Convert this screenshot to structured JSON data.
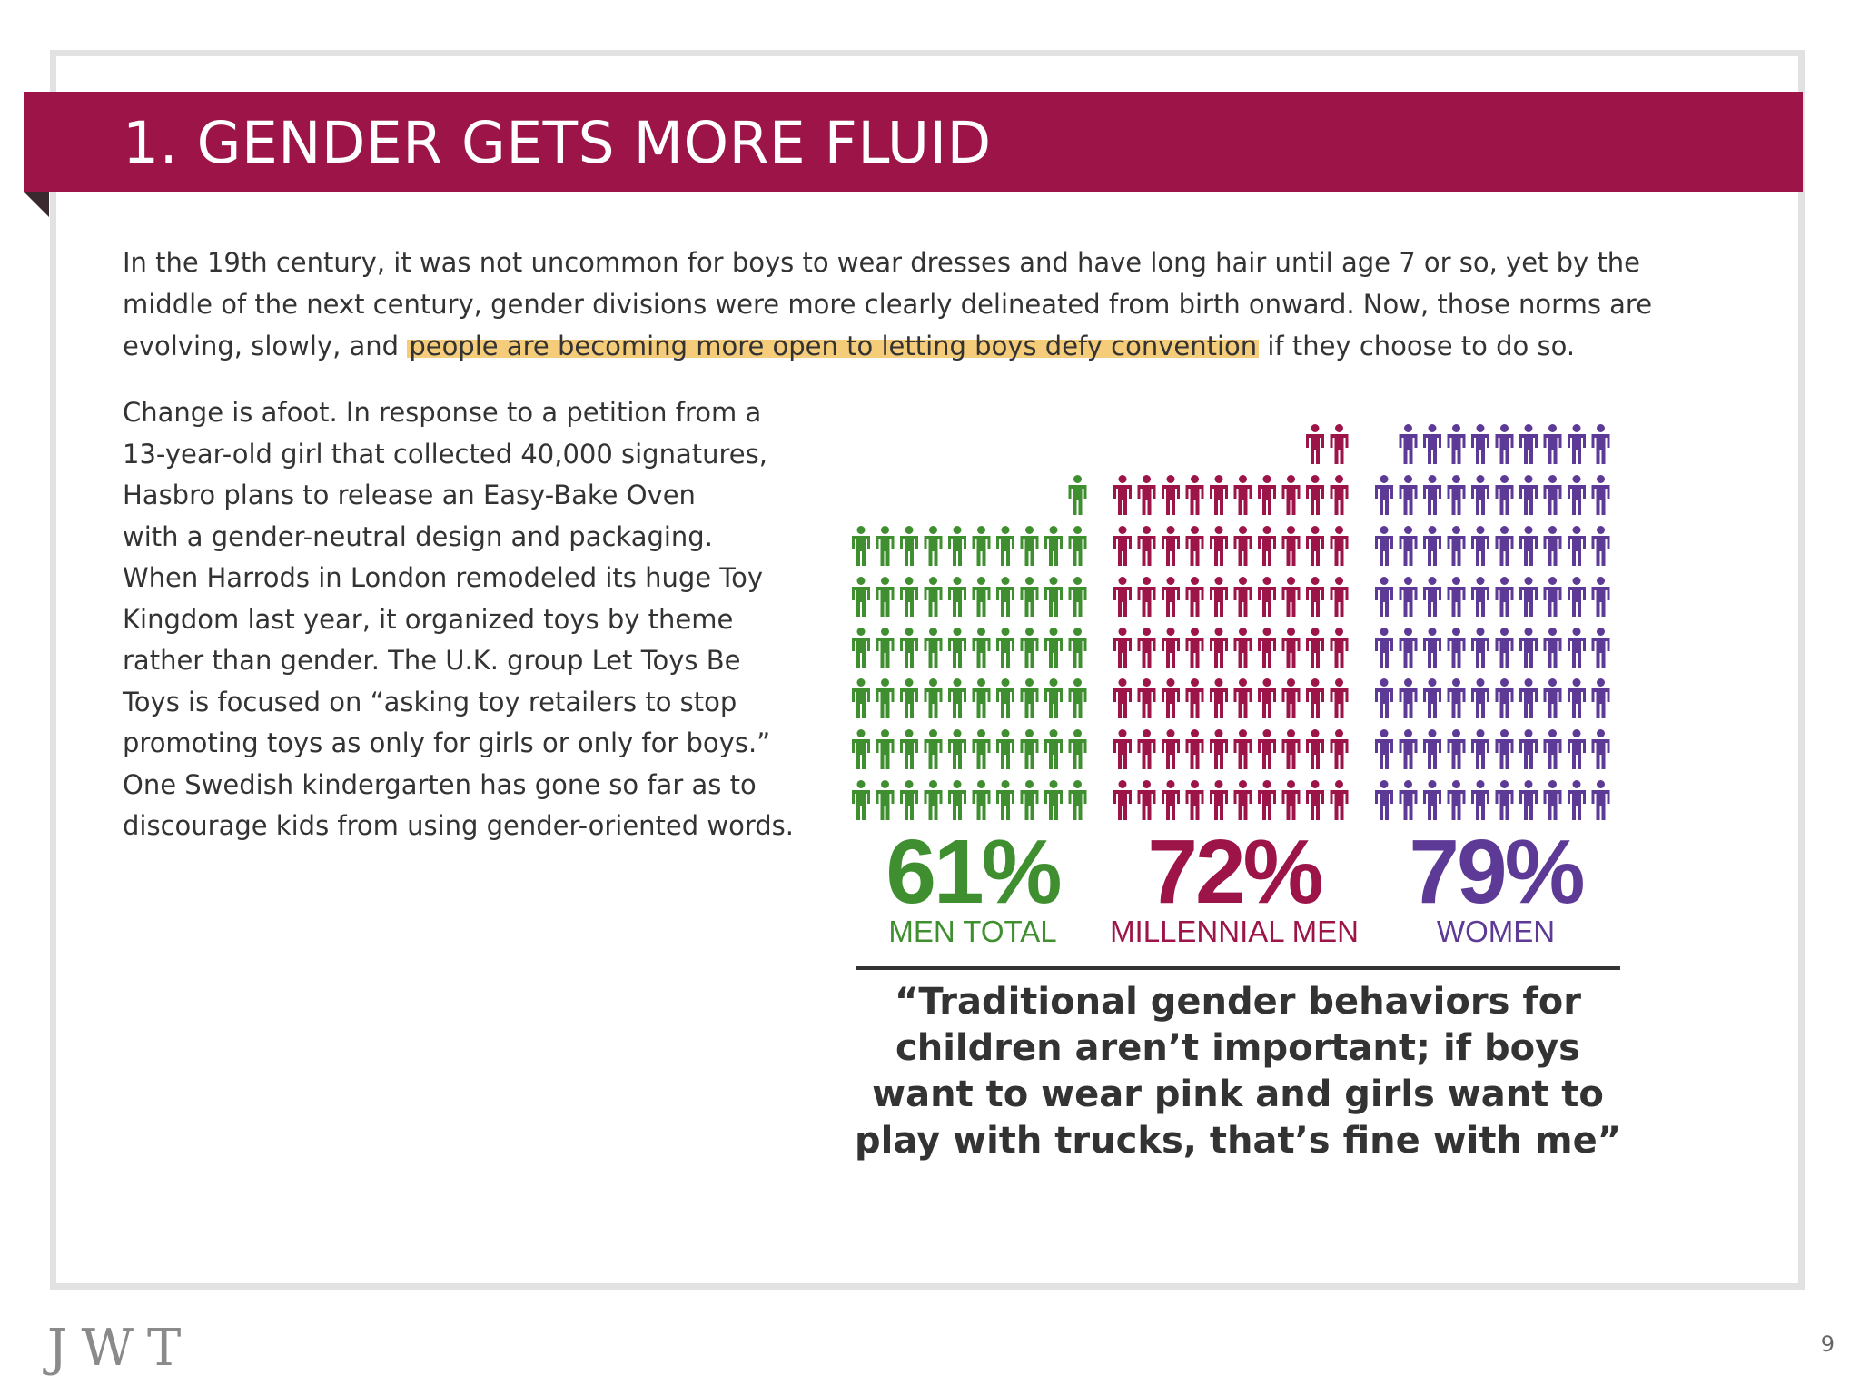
{
  "slide": {
    "title": "1. GENDER GETS MORE FLUID",
    "intro": {
      "before": "In the 19th century, it was not uncommon for boys to wear dresses and have long hair until age 7 or so, yet by the middle of the next century, gender divisions were more clearly delineated from birth onward. Now, those norms are evolving, slowly, and ",
      "highlight": "people are becoming more open to letting boys defy convention",
      "after": " if they choose to do so."
    },
    "body_lines": [
      "Change is afoot. In response to a petition from a",
      "13-year-old girl that collected 40,000 signatures,",
      "Hasbro plans to release an Easy-Bake Oven",
      "with a gender-neutral design and packaging.",
      "When Harrods in London remodeled its huge Toy",
      "Kingdom last year, it organized toys by theme",
      "rather than gender. The U.K. group Let Toys Be",
      "Toys is focused on “asking toy retailers to stop",
      "promoting toys as only for girls or only for boys.”",
      "One Swedish kindergarten has gone so far as to",
      "discourage kids from using gender-oriented words."
    ],
    "quote": "“Traditional gender behaviors for children aren’t important; if boys want to wear pink and girls want to play with trucks, that’s fine with me”",
    "footer_logo": "JWT",
    "page_number": "9",
    "colors": {
      "brand": "#9c1448",
      "highlight": "#f5cd7a"
    }
  },
  "chart_data": {
    "type": "pictogram",
    "unit": "percent agreeing",
    "icons_per_row": 10,
    "categories": [
      "MEN TOTAL",
      "MILLENNIAL MEN",
      "WOMEN"
    ],
    "series": [
      {
        "name": "MEN TOTAL",
        "value": 61,
        "label": "61%",
        "color": "#3f8f30"
      },
      {
        "name": "MILLENNIAL MEN",
        "value": 72,
        "label": "72%",
        "color": "#9c1448"
      },
      {
        "name": "WOMEN",
        "value": 79,
        "label": "79%",
        "color": "#5e3a97"
      }
    ]
  }
}
